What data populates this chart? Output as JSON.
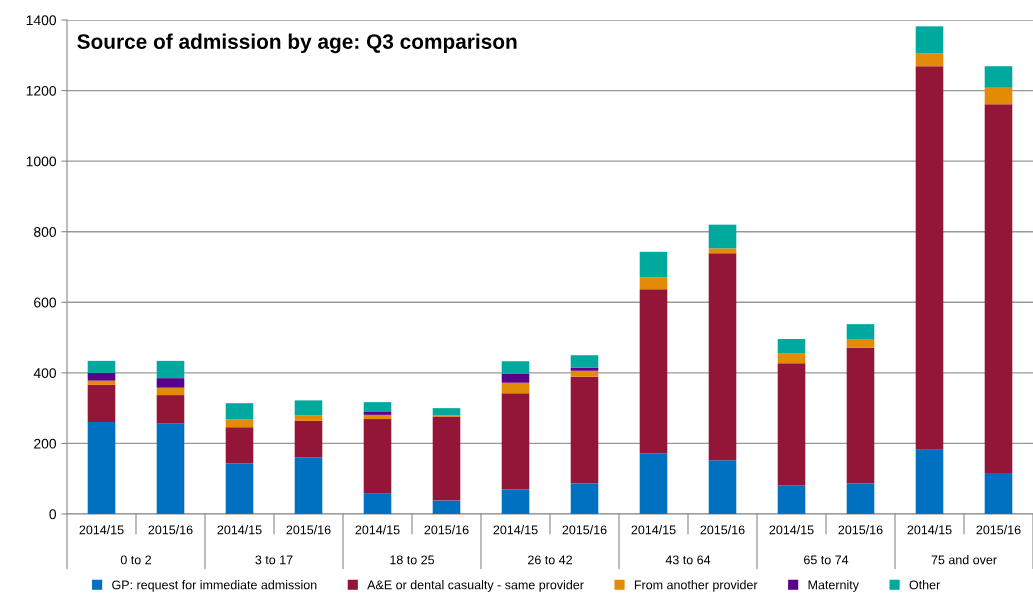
{
  "chart_data": {
    "type": "bar",
    "stacked": true,
    "title": "Source of admission by age: Q3 comparison",
    "categories": [
      "2014/15",
      "2015/16",
      "2014/15",
      "2015/16",
      "2014/15",
      "2015/16",
      "2014/15",
      "2015/16",
      "2014/15",
      "2015/16",
      "2014/15",
      "2015/16",
      "2014/15",
      "2015/16"
    ],
    "annotations": [
      "0 to 2",
      "3 to 17",
      "18 to 25",
      "26 to 42",
      "43 to 64",
      "65 to 74",
      "75 and over"
    ],
    "series": [
      {
        "name": "GP: request for immediate admission",
        "color": "#0070c0",
        "values": [
          261,
          257,
          143,
          161,
          59,
          38,
          70,
          87,
          172,
          152,
          81,
          87,
          182,
          116
        ]
      },
      {
        "name": "A&E or dental casualty - same provider",
        "color": "#931638",
        "values": [
          105,
          80,
          103,
          103,
          210,
          238,
          272,
          302,
          465,
          587,
          346,
          384,
          1087,
          1045
        ]
      },
      {
        "name": "From another provider",
        "color": "#e38b06",
        "values": [
          12,
          21,
          22,
          16,
          12,
          4,
          30,
          17,
          34,
          14,
          29,
          25,
          36,
          47
        ]
      },
      {
        "name": "Maternity",
        "color": "#59008c",
        "values": [
          22,
          27,
          0,
          0,
          8,
          0,
          26,
          9,
          0,
          0,
          0,
          0,
          0,
          0
        ]
      },
      {
        "name": "Other",
        "color": "#00a99d",
        "values": [
          34,
          49,
          46,
          42,
          28,
          20,
          35,
          35,
          72,
          67,
          40,
          42,
          77,
          61
        ]
      }
    ],
    "ylim": [
      0,
      1400
    ],
    "yticks": [
      0,
      200,
      400,
      600,
      800,
      1000,
      1200,
      1400
    ],
    "grid": "y",
    "legend": "bottom"
  }
}
